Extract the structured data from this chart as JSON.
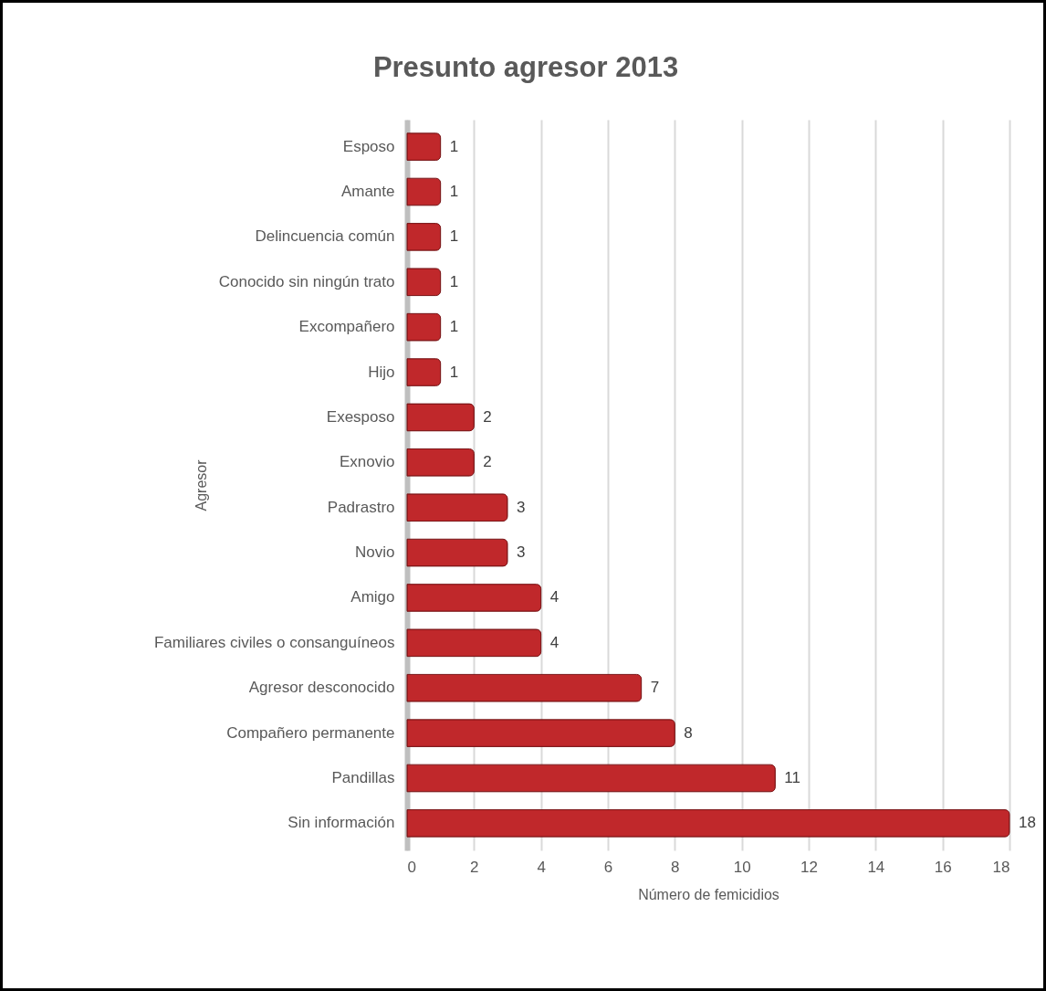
{
  "chart_data": {
    "type": "bar",
    "orientation": "horizontal",
    "title": "Presunto agresor 2013",
    "xlabel": "Número de femicidios",
    "ylabel": "Agresor",
    "categories": [
      "Esposo",
      "Amante",
      "Delincuencia común",
      "Conocido sin ningún trato",
      "Excompañero",
      "Hijo",
      "Exesposo",
      "Exnovio",
      "Padrastro",
      "Novio",
      "Amigo",
      "Familiares civiles o consanguíneos",
      "Agresor desconocido",
      "Compañero permanente",
      "Pandillas",
      "Sin información"
    ],
    "values": [
      1,
      1,
      1,
      1,
      1,
      1,
      2,
      2,
      3,
      3,
      4,
      4,
      7,
      8,
      11,
      18
    ],
    "color": "#c0282b",
    "xlim": [
      0,
      18
    ],
    "xticks": [
      0,
      2,
      4,
      6,
      8,
      10,
      12,
      14,
      16,
      18
    ],
    "grid": "x",
    "data_labels": true
  }
}
